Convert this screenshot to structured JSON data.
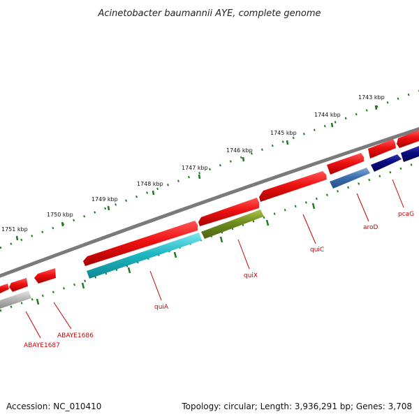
{
  "header": {
    "title": "Acinetobacter baumannii AYE, complete genome"
  },
  "footer": {
    "accession": "Accession: NC_010410",
    "summary": "Topology: circular; Length: 3,936,291 bp; Genes: 3,708"
  },
  "kbp_ticks": [
    "1743 kbp",
    "1744 kbp",
    "1745 kbp",
    "1746 kbp",
    "1747 kbp",
    "1748 kbp",
    "1749 kbp",
    "1750 kbp",
    "1751 kbp"
  ],
  "colors": {
    "backbone": "#7a7a7a",
    "cds": "#ee1111",
    "tick": "#1f7a1f",
    "label": "#cc0000",
    "quiA": "#1fb8c4",
    "quiX": "#6e8c1e",
    "aroD": "#3a6fb0",
    "pcaG": "#0a0a80",
    "ABAYE1687": "#b8b8b8"
  },
  "gene_labels": [
    "ABAYE1687",
    "ABAYE1686",
    "quiA",
    "quiX",
    "quiC",
    "aroD",
    "pcaG"
  ]
}
